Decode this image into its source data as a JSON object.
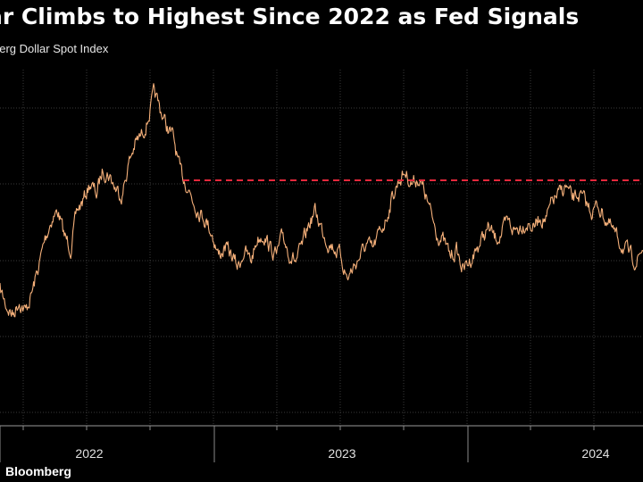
{
  "chart_data": {
    "type": "line",
    "title": "ar Climbs to Highest Since 2022 as Fed Signals",
    "subtitle": "berg Dollar Spot Index",
    "source": "Bloomberg",
    "x_tick_labels": [
      "2022",
      "2023",
      "2024"
    ],
    "grid": true,
    "reference_line": {
      "style": "dashed",
      "color": "#e5283c"
    },
    "line_color": "#f5b07a",
    "series": [
      {
        "values": [
          [
            0.0,
            0.7
          ],
          [
            0.01,
            0.76
          ],
          [
            0.02,
            0.79
          ],
          [
            0.03,
            0.74
          ],
          [
            0.04,
            0.78
          ],
          [
            0.05,
            0.71
          ],
          [
            0.06,
            0.62
          ],
          [
            0.07,
            0.52
          ],
          [
            0.08,
            0.45
          ],
          [
            0.09,
            0.42
          ],
          [
            0.1,
            0.51
          ],
          [
            0.11,
            0.55
          ],
          [
            0.12,
            0.42
          ],
          [
            0.13,
            0.38
          ],
          [
            0.14,
            0.32
          ],
          [
            0.15,
            0.36
          ],
          [
            0.16,
            0.27
          ],
          [
            0.17,
            0.29
          ],
          [
            0.18,
            0.34
          ],
          [
            0.19,
            0.36
          ],
          [
            0.2,
            0.25
          ],
          [
            0.21,
            0.18
          ],
          [
            0.22,
            0.15
          ],
          [
            0.23,
            0.09
          ],
          [
            0.24,
            0.0
          ],
          [
            0.25,
            0.06
          ],
          [
            0.26,
            0.12
          ],
          [
            0.27,
            0.16
          ],
          [
            0.28,
            0.28
          ],
          [
            0.29,
            0.32
          ],
          [
            0.3,
            0.38
          ],
          [
            0.31,
            0.42
          ],
          [
            0.32,
            0.45
          ],
          [
            0.33,
            0.5
          ],
          [
            0.34,
            0.58
          ],
          [
            0.35,
            0.55
          ],
          [
            0.36,
            0.58
          ],
          [
            0.37,
            0.62
          ],
          [
            0.38,
            0.56
          ],
          [
            0.39,
            0.6
          ],
          [
            0.4,
            0.52
          ],
          [
            0.41,
            0.5
          ],
          [
            0.42,
            0.55
          ],
          [
            0.43,
            0.58
          ],
          [
            0.44,
            0.51
          ],
          [
            0.45,
            0.57
          ],
          [
            0.46,
            0.6
          ],
          [
            0.47,
            0.55
          ],
          [
            0.48,
            0.47
          ],
          [
            0.49,
            0.42
          ],
          [
            0.5,
            0.48
          ],
          [
            0.51,
            0.53
          ],
          [
            0.52,
            0.55
          ],
          [
            0.53,
            0.58
          ],
          [
            0.54,
            0.66
          ],
          [
            0.55,
            0.62
          ],
          [
            0.56,
            0.58
          ],
          [
            0.57,
            0.54
          ],
          [
            0.58,
            0.56
          ],
          [
            0.59,
            0.5
          ],
          [
            0.6,
            0.45
          ],
          [
            0.61,
            0.37
          ],
          [
            0.62,
            0.31
          ],
          [
            0.63,
            0.28
          ],
          [
            0.64,
            0.32
          ],
          [
            0.65,
            0.3
          ],
          [
            0.66,
            0.35
          ],
          [
            0.67,
            0.43
          ],
          [
            0.68,
            0.5
          ],
          [
            0.69,
            0.53
          ],
          [
            0.7,
            0.58
          ],
          [
            0.71,
            0.56
          ],
          [
            0.72,
            0.63
          ],
          [
            0.73,
            0.6
          ],
          [
            0.74,
            0.56
          ],
          [
            0.75,
            0.52
          ],
          [
            0.76,
            0.48
          ],
          [
            0.77,
            0.52
          ],
          [
            0.78,
            0.5
          ],
          [
            0.79,
            0.46
          ],
          [
            0.8,
            0.49
          ],
          [
            0.81,
            0.47
          ],
          [
            0.82,
            0.46
          ],
          [
            0.83,
            0.48
          ],
          [
            0.84,
            0.44
          ],
          [
            0.85,
            0.45
          ],
          [
            0.86,
            0.38
          ],
          [
            0.87,
            0.36
          ],
          [
            0.88,
            0.33
          ],
          [
            0.89,
            0.38
          ],
          [
            0.9,
            0.36
          ],
          [
            0.91,
            0.39
          ],
          [
            0.92,
            0.42
          ],
          [
            0.93,
            0.4
          ],
          [
            0.94,
            0.44
          ],
          [
            0.95,
            0.48
          ],
          [
            0.96,
            0.52
          ],
          [
            0.97,
            0.55
          ],
          [
            0.98,
            0.58
          ],
          [
            0.99,
            0.6
          ],
          [
            1.0,
            0.55
          ]
        ]
      }
    ]
  },
  "footer": {
    "source_label": "Bloomberg"
  }
}
